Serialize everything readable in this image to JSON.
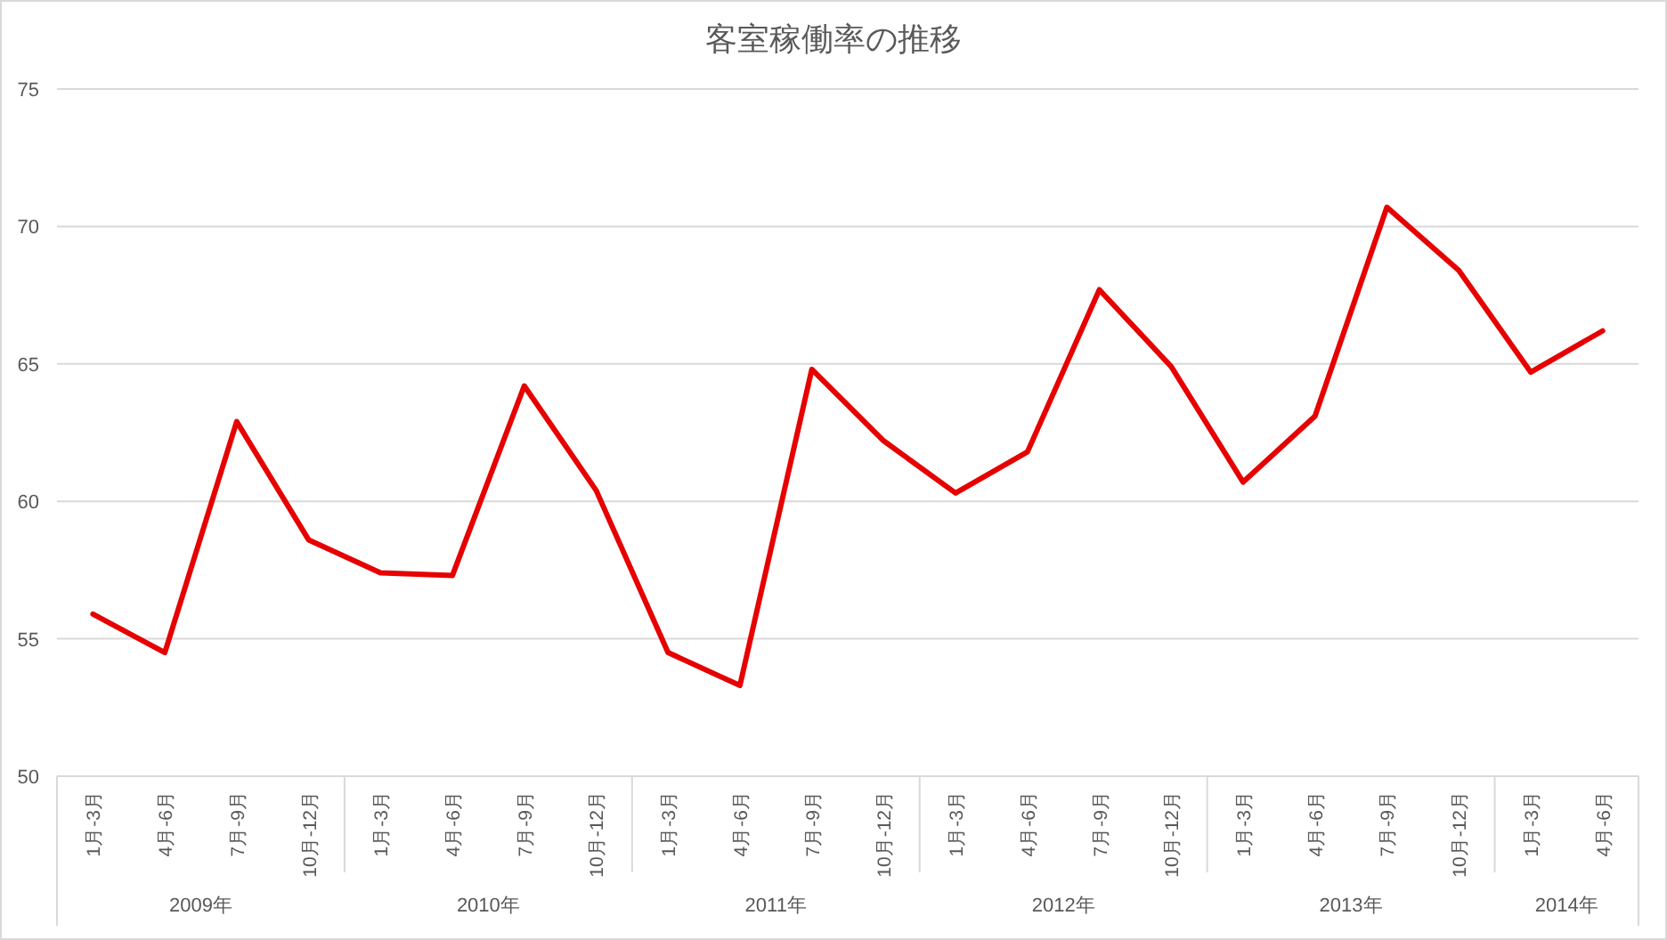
{
  "chart_data": {
    "type": "line",
    "title": "客室稼働率の推移",
    "categories": [
      "1月-3月",
      "4月-6月",
      "7月-9月",
      "10月-12月",
      "1月-3月",
      "4月-6月",
      "7月-9月",
      "10月-12月",
      "1月-3月",
      "4月-6月",
      "7月-9月",
      "10月-12月",
      "1月-3月",
      "4月-6月",
      "7月-9月",
      "10月-12月",
      "1月-3月",
      "4月-6月",
      "7月-9月",
      "10月-12月",
      "1月-3月",
      "4月-6月"
    ],
    "series": [
      {
        "color": "#e60000",
        "values": [
          55.9,
          54.5,
          62.9,
          58.6,
          57.4,
          57.3,
          64.2,
          60.4,
          54.5,
          53.3,
          64.8,
          62.2,
          60.3,
          61.8,
          67.7,
          64.9,
          60.7,
          63.1,
          70.7,
          68.4,
          64.7,
          66.2
        ]
      }
    ],
    "annotations": [
      "2009年",
      "2010年",
      "2011年",
      "2012年",
      "2013年",
      "2014年"
    ],
    "ylim": [
      50,
      75
    ],
    "yticks": [
      50,
      55,
      60,
      65,
      70,
      75
    ],
    "grid": "y",
    "marker": "none",
    "line_style": "solid"
  }
}
